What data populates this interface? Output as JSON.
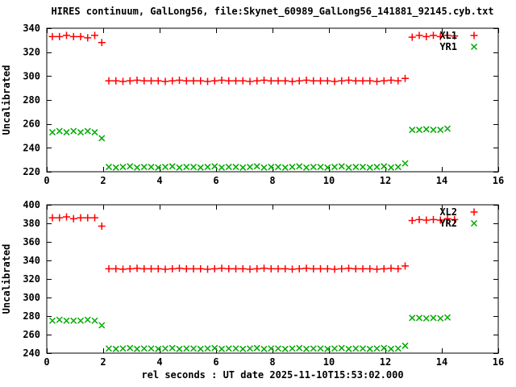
{
  "title": "HIRES continuum, GalLong56, file:Skynet_60989_GalLong56_141881_92145.cyb.txt",
  "xlabel": "rel seconds : UT date 2025-11-10T15:53:02.000",
  "colors": {
    "red": "#ff0000",
    "green": "#00aa00",
    "axis": "#000000",
    "text": "#000000",
    "background": "#ffffff"
  },
  "chart_data": [
    {
      "type": "scatter",
      "name": "top-panel",
      "ylabel": "Uncalibrated",
      "xlim": [
        0,
        16
      ],
      "ylim": [
        220,
        340
      ],
      "xticks": [
        0,
        2,
        4,
        6,
        8,
        10,
        12,
        14,
        16
      ],
      "yticks": [
        220,
        240,
        260,
        280,
        300,
        320,
        340
      ],
      "grid": false,
      "legend_position": "top-right",
      "series": [
        {
          "name": "XL1",
          "marker": "plus",
          "color_key": "red",
          "points": [
            [
              0.2,
              333
            ],
            [
              0.45,
              333
            ],
            [
              0.7,
              334
            ],
            [
              0.95,
              333
            ],
            [
              1.2,
              333
            ],
            [
              1.45,
              332
            ],
            [
              1.7,
              334
            ],
            [
              1.95,
              328
            ],
            [
              2.2,
              296
            ],
            [
              2.45,
              296
            ],
            [
              2.7,
              295.5
            ],
            [
              2.95,
              296
            ],
            [
              3.2,
              296.5
            ],
            [
              3.45,
              296
            ],
            [
              3.7,
              296
            ],
            [
              3.95,
              296
            ],
            [
              4.2,
              295.5
            ],
            [
              4.45,
              296
            ],
            [
              4.7,
              296.5
            ],
            [
              4.95,
              296
            ],
            [
              5.2,
              296
            ],
            [
              5.45,
              296
            ],
            [
              5.7,
              295.5
            ],
            [
              5.95,
              296
            ],
            [
              6.2,
              296.5
            ],
            [
              6.45,
              296
            ],
            [
              6.7,
              296
            ],
            [
              6.95,
              296
            ],
            [
              7.2,
              295.5
            ],
            [
              7.45,
              296
            ],
            [
              7.7,
              296.5
            ],
            [
              7.95,
              296
            ],
            [
              8.2,
              296
            ],
            [
              8.45,
              296
            ],
            [
              8.7,
              295.5
            ],
            [
              8.95,
              296
            ],
            [
              9.2,
              296.5
            ],
            [
              9.45,
              296
            ],
            [
              9.7,
              296
            ],
            [
              9.95,
              296
            ],
            [
              10.2,
              295.5
            ],
            [
              10.45,
              296
            ],
            [
              10.7,
              296.5
            ],
            [
              10.95,
              296
            ],
            [
              11.2,
              296
            ],
            [
              11.45,
              296
            ],
            [
              11.7,
              295.5
            ],
            [
              11.95,
              296
            ],
            [
              12.2,
              296.5
            ],
            [
              12.45,
              296
            ],
            [
              12.7,
              298
            ],
            [
              12.95,
              332.5
            ],
            [
              13.2,
              334
            ],
            [
              13.45,
              333
            ],
            [
              13.7,
              334
            ],
            [
              13.95,
              333
            ],
            [
              14.2,
              334
            ],
            [
              14.45,
              333.5
            ]
          ]
        },
        {
          "name": "YR1",
          "marker": "cross",
          "color_key": "green",
          "points": [
            [
              0.2,
              253
            ],
            [
              0.45,
              254
            ],
            [
              0.7,
              253
            ],
            [
              0.95,
              254
            ],
            [
              1.2,
              253
            ],
            [
              1.45,
              254
            ],
            [
              1.7,
              253
            ],
            [
              1.95,
              248
            ],
            [
              2.2,
              224
            ],
            [
              2.45,
              223.5
            ],
            [
              2.7,
              224
            ],
            [
              2.95,
              224.5
            ],
            [
              3.2,
              223.5
            ],
            [
              3.45,
              224
            ],
            [
              3.7,
              224
            ],
            [
              3.95,
              223.5
            ],
            [
              4.2,
              224
            ],
            [
              4.45,
              224.5
            ],
            [
              4.7,
              223.5
            ],
            [
              4.95,
              224
            ],
            [
              5.2,
              224
            ],
            [
              5.45,
              223.5
            ],
            [
              5.7,
              224
            ],
            [
              5.95,
              224.5
            ],
            [
              6.2,
              223.5
            ],
            [
              6.45,
              224
            ],
            [
              6.7,
              224
            ],
            [
              6.95,
              223.5
            ],
            [
              7.2,
              224
            ],
            [
              7.45,
              224.5
            ],
            [
              7.7,
              223.5
            ],
            [
              7.95,
              224
            ],
            [
              8.2,
              224
            ],
            [
              8.45,
              223.5
            ],
            [
              8.7,
              224
            ],
            [
              8.95,
              224.5
            ],
            [
              9.2,
              223.5
            ],
            [
              9.45,
              224
            ],
            [
              9.7,
              224
            ],
            [
              9.95,
              223.5
            ],
            [
              10.2,
              224
            ],
            [
              10.45,
              224.5
            ],
            [
              10.7,
              223.5
            ],
            [
              10.95,
              224
            ],
            [
              11.2,
              224
            ],
            [
              11.45,
              223.5
            ],
            [
              11.7,
              224
            ],
            [
              11.95,
              224.5
            ],
            [
              12.2,
              223.5
            ],
            [
              12.45,
              224
            ],
            [
              12.7,
              227
            ],
            [
              12.95,
              255
            ],
            [
              13.2,
              255
            ],
            [
              13.45,
              255.5
            ],
            [
              13.7,
              255
            ],
            [
              13.95,
              255
            ],
            [
              14.2,
              256
            ]
          ]
        }
      ]
    },
    {
      "type": "scatter",
      "name": "bottom-panel",
      "ylabel": "Uncalibrated",
      "xlim": [
        0,
        16
      ],
      "ylim": [
        240,
        400
      ],
      "xticks": [
        0,
        2,
        4,
        6,
        8,
        10,
        12,
        14,
        16
      ],
      "yticks": [
        240,
        260,
        280,
        300,
        320,
        340,
        360,
        380,
        400
      ],
      "grid": false,
      "legend_position": "top-right",
      "series": [
        {
          "name": "XL2",
          "marker": "plus",
          "color_key": "red",
          "points": [
            [
              0.2,
              386
            ],
            [
              0.45,
              386
            ],
            [
              0.7,
              387
            ],
            [
              0.95,
              385
            ],
            [
              1.2,
              386
            ],
            [
              1.45,
              386
            ],
            [
              1.7,
              386
            ],
            [
              1.95,
              377
            ],
            [
              2.2,
              331
            ],
            [
              2.45,
              331
            ],
            [
              2.7,
              330.5
            ],
            [
              2.95,
              331
            ],
            [
              3.2,
              331.5
            ],
            [
              3.45,
              331
            ],
            [
              3.7,
              331
            ],
            [
              3.95,
              331
            ],
            [
              4.2,
              330.5
            ],
            [
              4.45,
              331
            ],
            [
              4.7,
              331.5
            ],
            [
              4.95,
              331
            ],
            [
              5.2,
              331
            ],
            [
              5.45,
              331
            ],
            [
              5.7,
              330.5
            ],
            [
              5.95,
              331
            ],
            [
              6.2,
              331.5
            ],
            [
              6.45,
              331
            ],
            [
              6.7,
              331
            ],
            [
              6.95,
              331
            ],
            [
              7.2,
              330.5
            ],
            [
              7.45,
              331
            ],
            [
              7.7,
              331.5
            ],
            [
              7.95,
              331
            ],
            [
              8.2,
              331
            ],
            [
              8.45,
              331
            ],
            [
              8.7,
              330.5
            ],
            [
              8.95,
              331
            ],
            [
              9.2,
              331.5
            ],
            [
              9.45,
              331
            ],
            [
              9.7,
              331
            ],
            [
              9.95,
              331
            ],
            [
              10.2,
              330.5
            ],
            [
              10.45,
              331
            ],
            [
              10.7,
              331.5
            ],
            [
              10.95,
              331
            ],
            [
              11.2,
              331
            ],
            [
              11.45,
              331
            ],
            [
              11.7,
              330.5
            ],
            [
              11.95,
              331
            ],
            [
              12.2,
              331.5
            ],
            [
              12.45,
              331
            ],
            [
              12.7,
              334
            ],
            [
              12.95,
              383
            ],
            [
              13.2,
              384
            ],
            [
              13.45,
              383.5
            ],
            [
              13.7,
              384
            ],
            [
              13.95,
              383.5
            ],
            [
              14.2,
              385
            ],
            [
              14.45,
              384
            ]
          ]
        },
        {
          "name": "YR2",
          "marker": "cross",
          "color_key": "green",
          "points": [
            [
              0.2,
              275
            ],
            [
              0.45,
              276
            ],
            [
              0.7,
              275
            ],
            [
              0.95,
              275
            ],
            [
              1.2,
              275
            ],
            [
              1.45,
              276
            ],
            [
              1.7,
              275
            ],
            [
              1.95,
              270
            ],
            [
              2.2,
              245
            ],
            [
              2.45,
              244.5
            ],
            [
              2.7,
              245
            ],
            [
              2.95,
              245.5
            ],
            [
              3.2,
              244.5
            ],
            [
              3.45,
              245
            ],
            [
              3.7,
              245
            ],
            [
              3.95,
              244.5
            ],
            [
              4.2,
              245
            ],
            [
              4.45,
              245.5
            ],
            [
              4.7,
              244.5
            ],
            [
              4.95,
              245
            ],
            [
              5.2,
              245
            ],
            [
              5.45,
              244.5
            ],
            [
              5.7,
              245
            ],
            [
              5.95,
              245.5
            ],
            [
              6.2,
              244.5
            ],
            [
              6.45,
              245
            ],
            [
              6.7,
              245
            ],
            [
              6.95,
              244.5
            ],
            [
              7.2,
              245
            ],
            [
              7.45,
              245.5
            ],
            [
              7.7,
              244.5
            ],
            [
              7.95,
              245
            ],
            [
              8.2,
              245
            ],
            [
              8.45,
              244.5
            ],
            [
              8.7,
              245
            ],
            [
              8.95,
              245.5
            ],
            [
              9.2,
              244.5
            ],
            [
              9.45,
              245
            ],
            [
              9.7,
              245
            ],
            [
              9.95,
              244.5
            ],
            [
              10.2,
              245
            ],
            [
              10.45,
              245.5
            ],
            [
              10.7,
              244.5
            ],
            [
              10.95,
              245
            ],
            [
              11.2,
              245
            ],
            [
              11.45,
              244.5
            ],
            [
              11.7,
              245
            ],
            [
              11.95,
              245.5
            ],
            [
              12.2,
              244.5
            ],
            [
              12.45,
              245
            ],
            [
              12.7,
              248
            ],
            [
              12.95,
              278
            ],
            [
              13.2,
              278
            ],
            [
              13.45,
              277.5
            ],
            [
              13.7,
              278
            ],
            [
              13.95,
              277.5
            ],
            [
              14.2,
              278.5
            ]
          ]
        }
      ]
    }
  ]
}
